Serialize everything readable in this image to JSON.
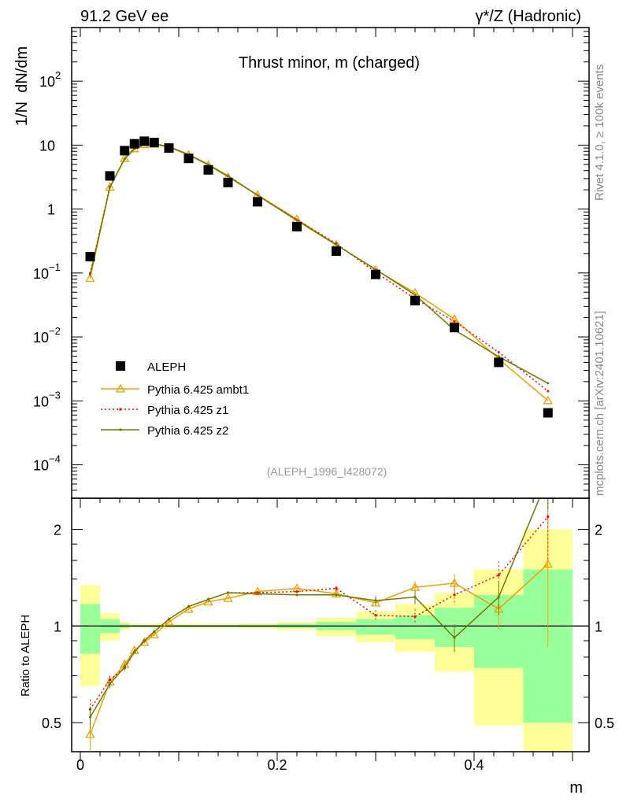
{
  "header": {
    "left": "91.2 GeV ee",
    "right": "γ*/Z (Hadronic)",
    "side_top": "Rivet 4.1.0, ≥ 100k events",
    "side_bottom": "mcplots.cern.ch [arXiv:2401.10621]"
  },
  "chart_data": {
    "type": "line",
    "title": "Thrust minor, m (charged)",
    "analysis_label": "(ALEPH_1996_I428072)",
    "xlabel": "m",
    "ylabel": "1/N  dN/dm",
    "ratio_ylabel": "Ratio to ALEPH",
    "xlim": [
      -0.009,
      0.517
    ],
    "ylim": [
      3e-05,
      690
    ],
    "ratio_ylim": [
      0.406,
      2.5
    ],
    "yscale": "log",
    "legend_position": "middle-left",
    "x_tick_labels": [
      {
        "v": 0,
        "t": "0"
      },
      {
        "v": 0.2,
        "t": "0.2"
      },
      {
        "v": 0.4,
        "t": "0.4"
      }
    ],
    "y_tick_labels": [
      {
        "v": 100,
        "b": "10",
        "e": "2"
      },
      {
        "v": 10,
        "b": "10",
        "e": ""
      },
      {
        "v": 1,
        "b": "1",
        "e": ""
      },
      {
        "v": 0.1,
        "b": "10",
        "e": "−1"
      },
      {
        "v": 0.01,
        "b": "10",
        "e": "−2"
      },
      {
        "v": 0.001,
        "b": "10",
        "e": "−3"
      },
      {
        "v": 0.0001,
        "b": "10",
        "e": "−4"
      }
    ],
    "ratio_tick_labels": [
      {
        "v": 2,
        "t": "2"
      },
      {
        "v": 1,
        "t": "1"
      },
      {
        "v": 0.5,
        "t": "0.5"
      }
    ],
    "bin_edges": [
      0,
      0.02,
      0.04,
      0.05,
      0.06,
      0.07,
      0.08,
      0.1,
      0.12,
      0.14,
      0.16,
      0.2,
      0.24,
      0.28,
      0.32,
      0.36,
      0.4,
      0.45,
      0.5
    ],
    "x": [
      0.01,
      0.03,
      0.045,
      0.055,
      0.065,
      0.075,
      0.09,
      0.11,
      0.13,
      0.15,
      0.18,
      0.22,
      0.26,
      0.3,
      0.34,
      0.38,
      0.425,
      0.475
    ],
    "data": {
      "name": "ALEPH",
      "color": "#000000",
      "values": [
        0.18,
        3.3,
        8.2,
        10.5,
        11.5,
        11.0,
        9.0,
        6.2,
        4.1,
        2.6,
        1.3,
        0.53,
        0.22,
        0.095,
        0.037,
        0.014,
        0.004,
        0.00065
      ],
      "band_yellow_lo": [
        0.65,
        0.9,
        0.97,
        0.985,
        0.985,
        0.985,
        0.985,
        0.985,
        0.985,
        0.985,
        0.98,
        0.97,
        0.93,
        0.89,
        0.83,
        0.72,
        0.49,
        0.35
      ],
      "band_yellow_hi": [
        1.34,
        1.095,
        1.03,
        1.015,
        1.015,
        1.015,
        1.015,
        1.015,
        1.015,
        1.015,
        1.02,
        1.03,
        1.06,
        1.11,
        1.17,
        1.27,
        1.5,
        2.0
      ],
      "band_green_lo": [
        0.82,
        0.95,
        0.985,
        0.993,
        0.993,
        0.993,
        0.993,
        0.993,
        0.993,
        0.993,
        0.99,
        0.985,
        0.97,
        0.94,
        0.91,
        0.86,
        0.74,
        0.5
      ],
      "band_green_hi": [
        1.17,
        1.05,
        1.015,
        1.007,
        1.007,
        1.007,
        1.007,
        1.007,
        1.007,
        1.007,
        1.01,
        1.015,
        1.03,
        1.05,
        1.08,
        1.14,
        1.25,
        1.5
      ]
    },
    "series": [
      {
        "name": "Pythia 6.425 ambt1",
        "color": "#f0a000",
        "style": "solid",
        "marker": "triangle",
        "ratio": [
          0.46,
          0.67,
          0.76,
          0.84,
          0.89,
          0.94,
          1.03,
          1.13,
          1.19,
          1.22,
          1.28,
          1.31,
          1.26,
          1.18,
          1.32,
          1.36,
          1.13,
          1.56
        ],
        "ratio_err": [
          0.05,
          0.02,
          0.02,
          0.01,
          0.01,
          0.01,
          0.01,
          0.01,
          0.01,
          0.01,
          0.01,
          0.01,
          0.02,
          0.03,
          0.06,
          0.09,
          0.15,
          0.7
        ]
      },
      {
        "name": "Pythia 6.425 z1",
        "color": "#ff0000",
        "style": "dotted",
        "marker": "dot",
        "ratio": [
          0.55,
          0.68,
          0.74,
          0.83,
          0.9,
          0.96,
          1.05,
          1.15,
          1.21,
          1.27,
          1.27,
          1.28,
          1.31,
          1.08,
          1.07,
          1.25,
          1.44,
          2.19
        ],
        "ratio_err": [
          0.04,
          0.02,
          0.02,
          0.01,
          0.01,
          0.01,
          0.01,
          0.01,
          0.01,
          0.01,
          0.01,
          0.01,
          0.02,
          0.04,
          0.06,
          0.09,
          0.15,
          0.6
        ]
      },
      {
        "name": "Pythia 6.425 z2",
        "color": "#707c00",
        "style": "solid",
        "marker": "dot",
        "ratio": [
          0.52,
          0.66,
          0.745,
          0.83,
          0.9,
          0.96,
          1.05,
          1.15,
          1.21,
          1.27,
          1.26,
          1.25,
          1.25,
          1.2,
          1.23,
          0.92,
          1.23,
          2.9
        ],
        "ratio_err": [
          0.04,
          0.02,
          0.02,
          0.01,
          0.01,
          0.01,
          0.01,
          0.01,
          0.01,
          0.01,
          0.01,
          0.01,
          0.02,
          0.04,
          0.06,
          0.09,
          0.15,
          0.6
        ]
      }
    ]
  }
}
